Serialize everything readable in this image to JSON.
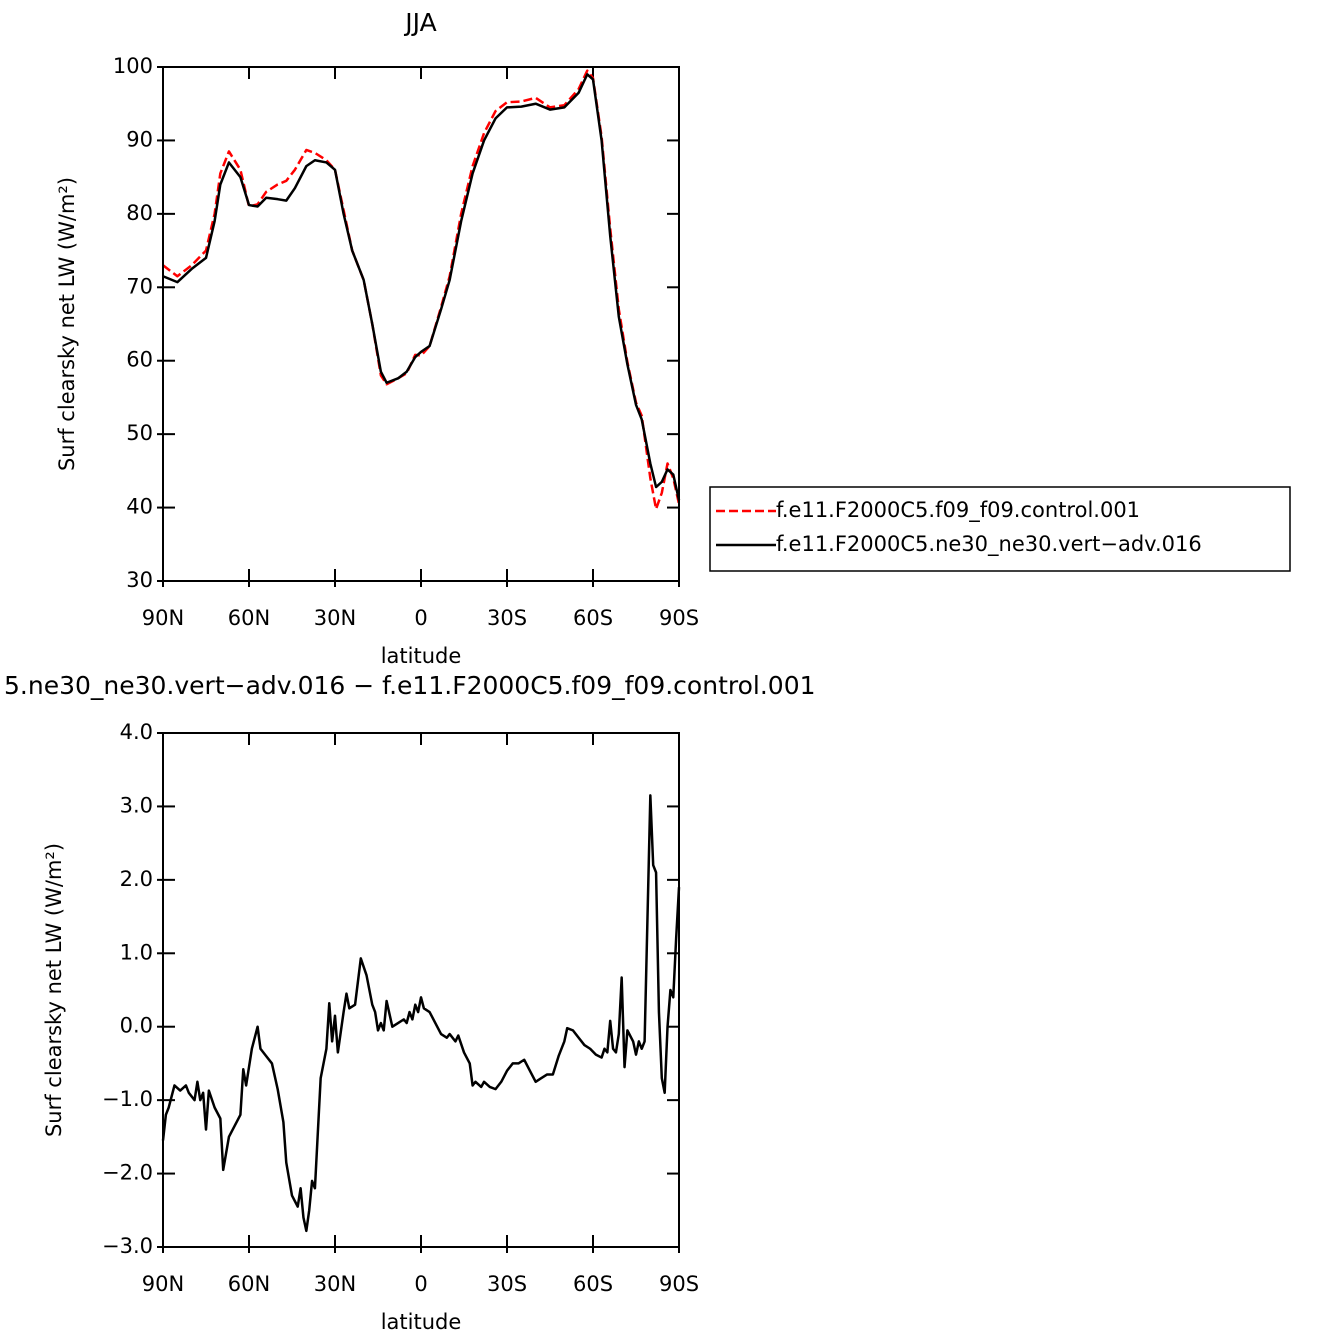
{
  "chart_data": [
    {
      "type": "line",
      "title": "JJA",
      "xlabel": "latitude",
      "ylabel": "Surf clearsky net LW (W/m²)",
      "x": [
        90,
        85,
        80,
        75,
        72,
        70,
        67,
        63,
        60,
        57,
        54,
        50,
        47,
        44,
        40,
        37,
        33,
        30,
        27,
        24,
        20,
        17,
        14,
        12,
        8,
        5,
        2,
        0,
        -3,
        -7,
        -10,
        -14,
        -18,
        -22,
        -26,
        -30,
        -35,
        -40,
        -45,
        -50,
        -55,
        -58,
        -60,
        -63,
        -66,
        -69,
        -72,
        -75,
        -77,
        -80,
        -82,
        -84,
        -86,
        -88,
        -90
      ],
      "xlim": [
        90,
        -90
      ],
      "xticks": [
        {
          "value": 90,
          "label": "90N"
        },
        {
          "value": 60,
          "label": "60N"
        },
        {
          "value": 30,
          "label": "30N"
        },
        0,
        {
          "value": -30,
          "label": "30S"
        },
        {
          "value": -60,
          "label": "60S"
        },
        {
          "value": -90,
          "label": "90S"
        }
      ],
      "ylim": [
        30,
        100
      ],
      "yticks": [
        30,
        40,
        50,
        60,
        70,
        80,
        90,
        100
      ],
      "legend": "right",
      "series": [
        {
          "name": "f.e11.F2000C5.f09_f09.control.001",
          "color": "#ff0000",
          "style": "dashed",
          "values": [
            73,
            71.5,
            73,
            75,
            80,
            85.5,
            88.5,
            86,
            81,
            81.3,
            83,
            84,
            84.5,
            86,
            88.7,
            88.3,
            87.3,
            86,
            80.5,
            75,
            71,
            65,
            58,
            56.8,
            57.6,
            58.3,
            60.8,
            60.7,
            62,
            67.3,
            71.5,
            80,
            86.5,
            91,
            94,
            95.2,
            95.3,
            95.8,
            94.5,
            94.8,
            97,
            99.5,
            98.5,
            90.5,
            78,
            67,
            59.8,
            54.3,
            52.5,
            44,
            39.8,
            42,
            46,
            44,
            40.5
          ]
        },
        {
          "name": "f.e11.F2000C5.ne30_ne30.vert−adv.016",
          "color": "#000000",
          "style": "solid",
          "values": [
            71.5,
            70.7,
            72.5,
            74,
            79,
            84,
            87,
            85,
            81.2,
            81,
            82.2,
            82,
            81.8,
            83.5,
            86.5,
            87.3,
            87,
            86,
            80,
            75,
            71,
            65,
            58.5,
            57,
            57.6,
            58.5,
            60.5,
            61.2,
            62,
            67,
            71,
            79,
            85.5,
            90,
            93,
            94.5,
            94.6,
            95,
            94.2,
            94.5,
            96.5,
            99,
            98.3,
            90,
            77,
            66,
            59.5,
            54,
            52,
            46,
            42.8,
            43.5,
            45.2,
            44.5,
            41
          ]
        }
      ]
    },
    {
      "type": "line",
      "title": "5.ne30_ne30.vert−adv.016 − f.e11.F2000C5.f09_f09.control.001",
      "xlabel": "latitude",
      "ylabel": "Surf clearsky net LW (W/m²)",
      "x": [
        90,
        89,
        88,
        86,
        84,
        82,
        81,
        79,
        78,
        77,
        76,
        75,
        74,
        72,
        70,
        69,
        67,
        65,
        63,
        62,
        61,
        59,
        57,
        56,
        54,
        52,
        50,
        48,
        47,
        45,
        43,
        42,
        41,
        40,
        39,
        38,
        37,
        35,
        33,
        32,
        31,
        30,
        29,
        27,
        26,
        25,
        23,
        21,
        19,
        17,
        16,
        15,
        14,
        13,
        12,
        10,
        8,
        6,
        5,
        4,
        3,
        2,
        1,
        0,
        -1,
        -3,
        -5,
        -7,
        -9,
        -10,
        -12,
        -13,
        -15,
        -17,
        -18,
        -19,
        -21,
        -22,
        -24,
        -26,
        -28,
        -30,
        -32,
        -34,
        -36,
        -38,
        -40,
        -42,
        -44,
        -46,
        -48,
        -50,
        -51,
        -53,
        -55,
        -57,
        -59,
        -61,
        -63,
        -64,
        -65,
        -66,
        -67,
        -68,
        -69,
        -70,
        -71,
        -72,
        -74,
        -75,
        -76,
        -77,
        -78,
        -80,
        -81,
        -82,
        -83,
        -84,
        -85,
        -86,
        -87,
        -88,
        -89,
        -90
      ],
      "xlim": [
        90,
        -90
      ],
      "xticks": [
        {
          "value": 90,
          "label": "90N"
        },
        {
          "value": 60,
          "label": "60N"
        },
        {
          "value": 30,
          "label": "30N"
        },
        0,
        {
          "value": -30,
          "label": "30S"
        },
        {
          "value": -60,
          "label": "60S"
        },
        {
          "value": -90,
          "label": "90S"
        }
      ],
      "ylim": [
        -3,
        4
      ],
      "yticks": [
        {
          "value": -3,
          "label": "−3.0"
        },
        {
          "value": -2,
          "label": "−2.0"
        },
        {
          "value": -1,
          "label": "−1.0"
        },
        {
          "value": 0,
          "label": "0.0"
        },
        {
          "value": 1,
          "label": "1.0"
        },
        {
          "value": 2,
          "label": "2.0"
        },
        {
          "value": 3,
          "label": "3.0"
        },
        {
          "value": 4,
          "label": "4.0"
        }
      ],
      "series": [
        {
          "color": "#000000",
          "style": "solid",
          "values": [
            -1.55,
            -1.2,
            -1.1,
            -0.8,
            -0.87,
            -0.8,
            -0.9,
            -1.0,
            -0.75,
            -1.0,
            -0.9,
            -1.4,
            -0.87,
            -1.1,
            -1.25,
            -1.95,
            -1.5,
            -1.35,
            -1.2,
            -0.58,
            -0.8,
            -0.3,
            0.0,
            -0.3,
            -0.4,
            -0.5,
            -0.85,
            -1.3,
            -1.85,
            -2.3,
            -2.45,
            -2.2,
            -2.6,
            -2.78,
            -2.5,
            -2.1,
            -2.2,
            -0.7,
            -0.3,
            0.32,
            -0.2,
            0.15,
            -0.35,
            0.2,
            0.45,
            0.25,
            0.3,
            0.93,
            0.7,
            0.3,
            0.2,
            -0.05,
            0.05,
            -0.05,
            0.35,
            0.0,
            0.05,
            0.1,
            0.05,
            0.2,
            0.1,
            0.3,
            0.2,
            0.4,
            0.25,
            0.2,
            0.05,
            -0.1,
            -0.15,
            -0.1,
            -0.2,
            -0.12,
            -0.35,
            -0.5,
            -0.8,
            -0.75,
            -0.82,
            -0.75,
            -0.82,
            -0.85,
            -0.75,
            -0.6,
            -0.5,
            -0.5,
            -0.45,
            -0.6,
            -0.75,
            -0.7,
            -0.65,
            -0.65,
            -0.4,
            -0.2,
            -0.02,
            -0.05,
            -0.15,
            -0.25,
            -0.3,
            -0.38,
            -0.42,
            -0.3,
            -0.35,
            0.08,
            -0.3,
            -0.35,
            -0.1,
            0.67,
            -0.55,
            -0.05,
            -0.2,
            -0.38,
            -0.2,
            -0.3,
            -0.2,
            3.15,
            2.2,
            2.1,
            0.2,
            -0.7,
            -0.9,
            0.0,
            0.5,
            0.4,
            1.2,
            1.9
          ]
        }
      ]
    }
  ]
}
